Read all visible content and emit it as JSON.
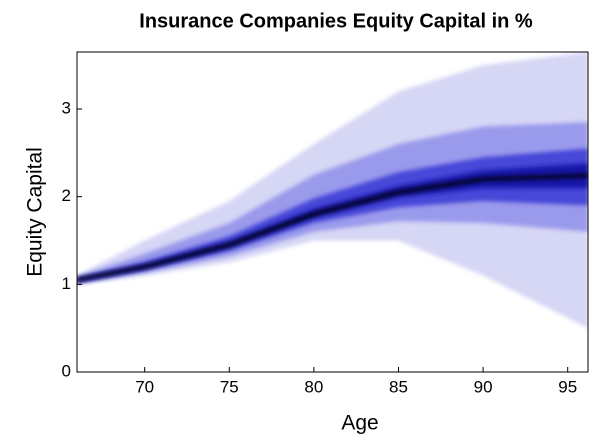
{
  "chart_data": {
    "type": "fan",
    "title": "Insurance Companies Equity Capital in %",
    "xlabel": "Age",
    "ylabel": "Equity Capital",
    "x": [
      66,
      70,
      75,
      80,
      85,
      90,
      96.2
    ],
    "bands": [
      {
        "color": "#d6d6f5",
        "lower": [
          1.0,
          1.1,
          1.25,
          1.5,
          1.5,
          1.1,
          0.5
        ],
        "upper": [
          1.1,
          1.5,
          1.95,
          2.6,
          3.2,
          3.5,
          3.65
        ]
      },
      {
        "color": "#9a9aec",
        "lower": [
          1.01,
          1.13,
          1.32,
          1.6,
          1.72,
          1.7,
          1.6
        ],
        "upper": [
          1.09,
          1.35,
          1.7,
          2.25,
          2.6,
          2.8,
          2.85
        ]
      },
      {
        "color": "#4646d8",
        "lower": [
          1.02,
          1.16,
          1.38,
          1.7,
          1.88,
          1.95,
          1.9
        ],
        "upper": [
          1.07,
          1.26,
          1.55,
          1.98,
          2.28,
          2.45,
          2.55
        ]
      },
      {
        "color": "#1414a8",
        "lower": [
          1.04,
          1.18,
          1.42,
          1.76,
          1.99,
          2.1,
          2.1
        ],
        "upper": [
          1.06,
          1.22,
          1.49,
          1.86,
          2.12,
          2.3,
          2.38
        ]
      }
    ],
    "median": {
      "color": "#000018",
      "values": [
        1.05,
        1.2,
        1.45,
        1.8,
        2.05,
        2.2,
        2.24
      ]
    },
    "xlim": [
      66,
      96.2
    ],
    "ylim": [
      0,
      3.65
    ],
    "xticks": [
      70,
      75,
      80,
      85,
      90,
      95
    ],
    "yticks": [
      0,
      1,
      2,
      3
    ]
  }
}
